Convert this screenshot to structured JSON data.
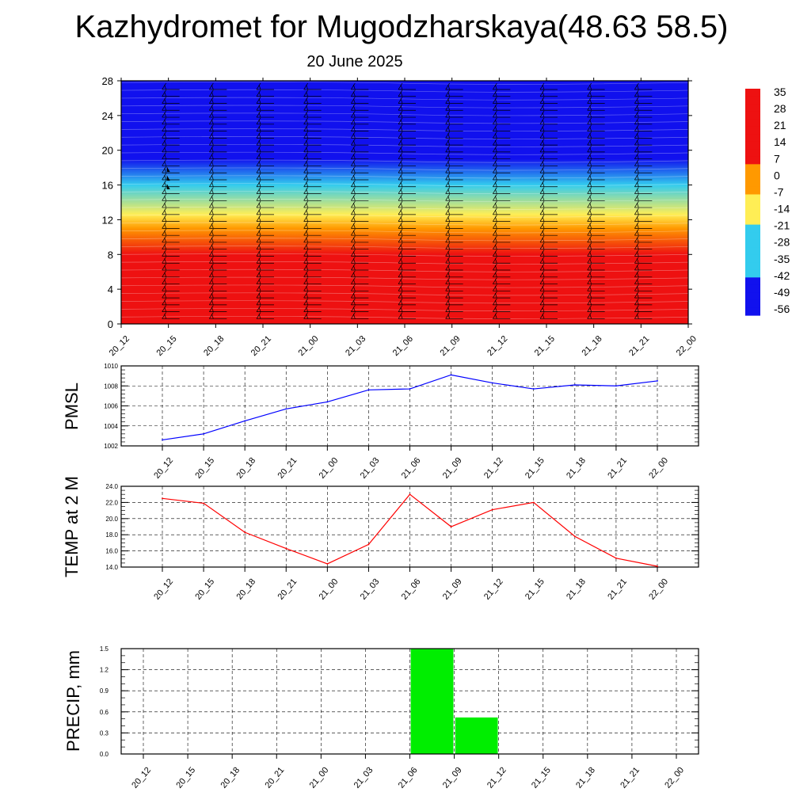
{
  "title": "Kazhydromet for Mugodzharskaya(48.63 58.5)",
  "subtitle": "20 June 2025",
  "chart_data": [
    {
      "type": "heatmap",
      "name": "temperature-cross-section",
      "x_categories": [
        "20_12",
        "20_15",
        "20_18",
        "20_21",
        "21_00",
        "21_03",
        "21_06",
        "21_09",
        "21_12",
        "21_15",
        "21_18",
        "21_21",
        "22_00"
      ],
      "y_ticks": [
        0,
        4,
        8,
        12,
        16,
        20,
        24,
        28
      ],
      "ylim": [
        0,
        28
      ],
      "colorbar_labels": [
        "35",
        "28",
        "21",
        "14",
        "7",
        "0",
        "-7",
        "-14",
        "-21",
        "-28",
        "-35",
        "-42",
        "-49",
        "-56"
      ],
      "colors": {
        "hot": "#ee1111",
        "orange": "#ff9900",
        "yellow": "#ffee55",
        "cyan": "#33ccee",
        "blue": "#1111ee",
        "violet": "#5a2be6"
      },
      "levels": [
        {
          "alt": 0,
          "value": 30
        },
        {
          "alt": 4,
          "value": 22
        },
        {
          "alt": 8,
          "value": 10
        },
        {
          "alt": 11,
          "value": 0
        },
        {
          "alt": 12.6,
          "value": -12
        },
        {
          "alt": 16,
          "value": -30
        },
        {
          "alt": 19,
          "value": -48
        },
        {
          "alt": 22,
          "value": -55
        },
        {
          "alt": 28,
          "value": -54
        }
      ],
      "wind_barbs": "on"
    },
    {
      "type": "line",
      "name": "pmsl",
      "ylabel": "PMSL",
      "categories": [
        "20_12",
        "20_15",
        "20_18",
        "20_21",
        "21_00",
        "21_03",
        "21_06",
        "21_09",
        "21_12",
        "21_15",
        "21_18",
        "21_21",
        "22_00"
      ],
      "values": [
        1002.6,
        1003.2,
        1004.5,
        1005.7,
        1006.4,
        1007.6,
        1007.7,
        1009.1,
        1008.3,
        1007.7,
        1008.1,
        1008.0,
        1008.5
      ],
      "ylim": [
        1002,
        1010
      ],
      "y_ticks": [
        "1002",
        "1004",
        "1006",
        "1008",
        "1010"
      ],
      "color": "#0000ff",
      "grid": true
    },
    {
      "type": "line",
      "name": "temp2m",
      "ylabel": "TEMP at 2 M",
      "categories": [
        "20_12",
        "20_15",
        "20_18",
        "20_21",
        "21_00",
        "21_03",
        "21_06",
        "21_09",
        "21_12",
        "21_15",
        "21_18",
        "21_21",
        "22_00"
      ],
      "values": [
        22.5,
        21.9,
        18.3,
        16.3,
        14.4,
        16.8,
        23.0,
        19.0,
        21.1,
        22.0,
        17.8,
        15.1,
        14.1
      ],
      "ylim": [
        14,
        24
      ],
      "y_ticks": [
        "14.0",
        "16.0",
        "18.0",
        "20.0",
        "22.0",
        "24.0"
      ],
      "color": "#ff0000",
      "grid": true
    },
    {
      "type": "bar",
      "name": "precip",
      "ylabel": "PRECIP, mm",
      "categories": [
        "20_12",
        "20_15",
        "20_18",
        "20_21",
        "21_00",
        "21_03",
        "21_06",
        "21_09",
        "21_12",
        "21_15",
        "21_18",
        "21_21",
        "22_00"
      ],
      "values": [
        0,
        0,
        0,
        0,
        0,
        0,
        0,
        1.5,
        0.52,
        0,
        0,
        0,
        0
      ],
      "ylim": [
        0,
        1.5
      ],
      "y_ticks": [
        "0.0",
        "0.3",
        "0.6",
        "0.9",
        "1.2",
        "1.5"
      ],
      "color": "#00ee00",
      "grid": true
    }
  ]
}
